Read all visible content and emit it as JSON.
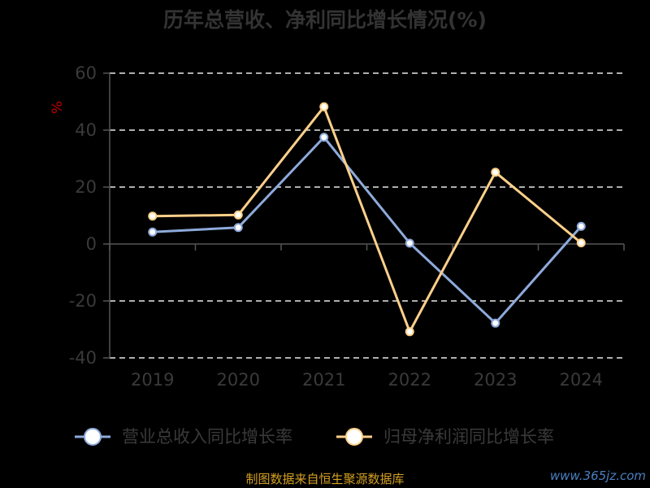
{
  "chart_data": {
    "type": "line",
    "title": "历年总营收、净利同比增长情况(%)",
    "ylabel": "%",
    "categories": [
      "2019",
      "2020",
      "2021",
      "2022",
      "2023",
      "2024"
    ],
    "ylim": [
      -40,
      60
    ],
    "yticks": [
      "60",
      "40",
      "20",
      "0",
      "-20",
      "-40"
    ],
    "grid": true,
    "legend_position": "bottom",
    "series": [
      {
        "name": "营业总收入同比增长率",
        "color": "#8eaadb",
        "values": [
          4.2,
          5.8,
          37.5,
          0.3,
          -27.8,
          6.2
        ]
      },
      {
        "name": "归母净利润同比增长率",
        "color": "#ffd08a",
        "values": [
          9.8,
          10.2,
          48.2,
          -30.8,
          25.2,
          0.4
        ]
      }
    ]
  },
  "source": "制图数据来自恒生聚源数据库",
  "watermark": "www.365jz.com"
}
